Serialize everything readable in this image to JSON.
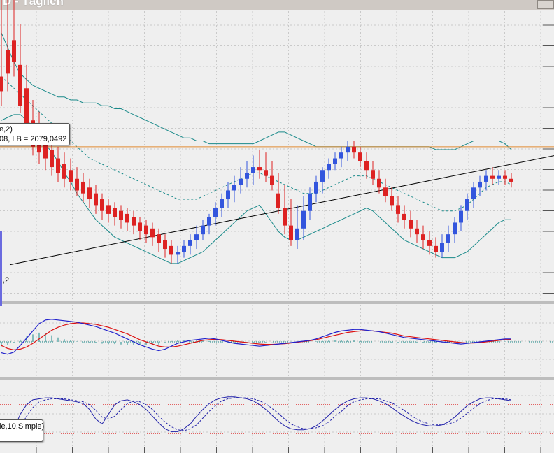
{
  "window": {
    "title": "D - Täglich"
  },
  "tooltips": {
    "main_line1": "e,2)",
    "main_line2": "08, LB = 2079,0492",
    "lower": "le,10,Simple)"
  },
  "point_label": ",2",
  "colors": {
    "bg": "#efefef",
    "grid": "#c9c9c9",
    "up": "#3355dd",
    "down": "#dd2222",
    "band": "#1a8a8a",
    "level": "#e08a30",
    "trend": "#000000",
    "macd": "#2222cc",
    "signal": "#dd1111",
    "hist": "#1a8a8a",
    "stoch_k": "#2222aa",
    "stoch_d": "#2222aa",
    "stoch_lvl": "#dd3333"
  },
  "chart_data": {
    "type": "candlestick",
    "note_series": [
      "ohlc",
      "bollinger_bands",
      "macd",
      "stochastic"
    ],
    "price_candles": [
      [
        0,
        220,
        210,
        335,
        200
      ],
      [
        1,
        238,
        222,
        328,
        210
      ],
      [
        2,
        245,
        230,
        350,
        220
      ],
      [
        3,
        228,
        200,
        256,
        195
      ],
      [
        4,
        212,
        186,
        228,
        178
      ],
      [
        5,
        190,
        172,
        204,
        166
      ],
      [
        6,
        186,
        168,
        196,
        160
      ],
      [
        7,
        176,
        164,
        186,
        156
      ],
      [
        8,
        170,
        158,
        180,
        152
      ],
      [
        9,
        164,
        154,
        172,
        148
      ],
      [
        10,
        160,
        150,
        168,
        144
      ],
      [
        11,
        156,
        148,
        164,
        142
      ],
      [
        12,
        150,
        142,
        158,
        138
      ],
      [
        13,
        148,
        140,
        154,
        134
      ],
      [
        14,
        144,
        136,
        150,
        130
      ],
      [
        15,
        140,
        132,
        146,
        126
      ],
      [
        16,
        136,
        128,
        140,
        122
      ],
      [
        17,
        132,
        126,
        136,
        120
      ],
      [
        18,
        130,
        124,
        134,
        118
      ],
      [
        19,
        128,
        122,
        132,
        116
      ],
      [
        20,
        126,
        120,
        130,
        114
      ],
      [
        21,
        124,
        118,
        128,
        112
      ],
      [
        22,
        120,
        114,
        124,
        108
      ],
      [
        23,
        118,
        112,
        122,
        106
      ],
      [
        24,
        116,
        110,
        120,
        104
      ],
      [
        25,
        112,
        106,
        116,
        100
      ],
      [
        26,
        108,
        102,
        112,
        96
      ],
      [
        27,
        104,
        98,
        108,
        92
      ],
      [
        28,
        98,
        100,
        104,
        92
      ],
      [
        29,
        100,
        104,
        108,
        96
      ],
      [
        30,
        104,
        108,
        112,
        98
      ],
      [
        31,
        108,
        112,
        118,
        102
      ],
      [
        32,
        112,
        118,
        122,
        108
      ],
      [
        33,
        118,
        124,
        126,
        112
      ],
      [
        34,
        124,
        130,
        134,
        118
      ],
      [
        35,
        130,
        136,
        140,
        124
      ],
      [
        36,
        136,
        142,
        148,
        130
      ],
      [
        37,
        142,
        146,
        152,
        134
      ],
      [
        38,
        146,
        150,
        158,
        140
      ],
      [
        39,
        150,
        154,
        162,
        144
      ],
      [
        40,
        154,
        158,
        166,
        146
      ],
      [
        41,
        158,
        156,
        170,
        150
      ],
      [
        42,
        156,
        152,
        168,
        148
      ],
      [
        43,
        152,
        146,
        162,
        142
      ],
      [
        44,
        140,
        130,
        154,
        126
      ],
      [
        45,
        130,
        118,
        146,
        112
      ],
      [
        46,
        118,
        108,
        136,
        104
      ],
      [
        47,
        108,
        116,
        132,
        102
      ],
      [
        48,
        116,
        128,
        138,
        108
      ],
      [
        49,
        128,
        140,
        144,
        122
      ],
      [
        50,
        140,
        148,
        152,
        134
      ],
      [
        51,
        148,
        156,
        158,
        140
      ],
      [
        52,
        156,
        160,
        164,
        150
      ],
      [
        53,
        160,
        164,
        168,
        156
      ],
      [
        54,
        164,
        168,
        172,
        158
      ],
      [
        55,
        168,
        172,
        176,
        162
      ],
      [
        56,
        172,
        168,
        176,
        164
      ],
      [
        57,
        168,
        162,
        172,
        158
      ],
      [
        58,
        162,
        156,
        168,
        150
      ],
      [
        59,
        156,
        150,
        162,
        146
      ],
      [
        60,
        150,
        144,
        156,
        140
      ],
      [
        61,
        144,
        138,
        150,
        134
      ],
      [
        62,
        138,
        132,
        144,
        128
      ],
      [
        63,
        132,
        126,
        138,
        120
      ],
      [
        64,
        126,
        122,
        132,
        116
      ],
      [
        65,
        122,
        116,
        128,
        110
      ],
      [
        66,
        116,
        112,
        122,
        106
      ],
      [
        67,
        112,
        108,
        118,
        102
      ],
      [
        68,
        108,
        104,
        114,
        98
      ],
      [
        69,
        104,
        100,
        110,
        96
      ],
      [
        70,
        100,
        106,
        112,
        96
      ],
      [
        71,
        106,
        112,
        118,
        100
      ],
      [
        72,
        112,
        120,
        124,
        106
      ],
      [
        73,
        120,
        128,
        132,
        114
      ],
      [
        74,
        128,
        136,
        140,
        122
      ],
      [
        75,
        136,
        144,
        148,
        130
      ],
      [
        76,
        144,
        148,
        152,
        138
      ],
      [
        77,
        148,
        152,
        156,
        142
      ],
      [
        78,
        152,
        150,
        158,
        146
      ],
      [
        79,
        150,
        152,
        156,
        146
      ],
      [
        80,
        152,
        150,
        156,
        146
      ],
      [
        81,
        150,
        148,
        154,
        144
      ]
    ],
    "bollinger_upper": [
      250,
      240,
      230,
      222,
      218,
      214,
      212,
      210,
      208,
      206,
      206,
      204,
      204,
      202,
      202,
      202,
      200,
      200,
      198,
      198,
      196,
      194,
      192,
      190,
      188,
      186,
      184,
      182,
      180,
      178,
      178,
      176,
      176,
      174,
      174,
      174,
      174,
      174,
      174,
      174,
      174,
      176,
      178,
      180,
      182,
      182,
      180,
      178,
      176,
      174,
      172,
      172,
      172,
      172,
      172,
      172,
      172,
      172,
      172,
      172,
      172,
      172,
      172,
      172,
      172,
      172,
      172,
      172,
      172,
      170,
      170,
      170,
      170,
      172,
      174,
      176,
      176,
      176,
      176,
      176,
      174,
      170
    ],
    "bollinger_mid": [
      220,
      216,
      212,
      208,
      204,
      200,
      196,
      192,
      188,
      184,
      180,
      176,
      172,
      168,
      164,
      162,
      160,
      158,
      156,
      154,
      152,
      150,
      148,
      146,
      144,
      142,
      140,
      138,
      136,
      136,
      136,
      136,
      138,
      140,
      142,
      144,
      146,
      148,
      150,
      152,
      154,
      154,
      152,
      150,
      148,
      146,
      144,
      142,
      140,
      140,
      140,
      142,
      144,
      146,
      148,
      150,
      152,
      152,
      152,
      150,
      148,
      146,
      144,
      142,
      140,
      138,
      136,
      134,
      132,
      130,
      128,
      128,
      128,
      130,
      132,
      136,
      140,
      144,
      146,
      148,
      148,
      146
    ],
    "bollinger_lower": [
      190,
      192,
      194,
      194,
      190,
      186,
      180,
      174,
      168,
      162,
      154,
      148,
      140,
      134,
      128,
      122,
      118,
      114,
      110,
      108,
      106,
      104,
      102,
      100,
      98,
      96,
      94,
      92,
      92,
      94,
      96,
      98,
      100,
      104,
      108,
      112,
      116,
      120,
      124,
      128,
      130,
      132,
      126,
      120,
      114,
      110,
      108,
      108,
      110,
      112,
      114,
      116,
      118,
      120,
      122,
      124,
      126,
      128,
      130,
      128,
      124,
      120,
      116,
      112,
      108,
      106,
      104,
      102,
      100,
      98,
      96,
      96,
      96,
      98,
      100,
      104,
      108,
      112,
      116,
      120,
      122,
      122
    ],
    "resistance_level": 172,
    "trendline": {
      "from": [
        0,
        90
      ],
      "to": [
        81,
        160
      ]
    },
    "macd_line": [
      -30,
      -34,
      -28,
      -10,
      10,
      30,
      50,
      60,
      62,
      60,
      58,
      56,
      54,
      50,
      46,
      42,
      36,
      30,
      24,
      16,
      8,
      0,
      -8,
      -14,
      -20,
      -24,
      -20,
      -12,
      -4,
      0,
      4,
      6,
      8,
      10,
      8,
      4,
      0,
      -4,
      -6,
      -8,
      -10,
      -12,
      -10,
      -8,
      -6,
      -4,
      -2,
      0,
      2,
      4,
      8,
      14,
      20,
      26,
      30,
      32,
      34,
      34,
      32,
      30,
      28,
      24,
      20,
      16,
      12,
      10,
      8,
      6,
      4,
      2,
      0,
      -2,
      -4,
      -6,
      -4,
      -2,
      0,
      2,
      4,
      6,
      8,
      8
    ],
    "signal_line": [
      -10,
      -18,
      -22,
      -20,
      -14,
      -4,
      8,
      20,
      32,
      40,
      46,
      50,
      52,
      52,
      50,
      48,
      44,
      40,
      34,
      28,
      22,
      14,
      6,
      0,
      -6,
      -12,
      -14,
      -14,
      -12,
      -8,
      -4,
      0,
      4,
      6,
      7,
      6,
      4,
      2,
      0,
      -2,
      -4,
      -6,
      -7,
      -7,
      -6,
      -5,
      -3,
      -1,
      1,
      3,
      6,
      10,
      14,
      18,
      22,
      26,
      28,
      30,
      30,
      30,
      28,
      26,
      24,
      20,
      16,
      14,
      12,
      10,
      8,
      6,
      4,
      2,
      0,
      -2,
      -3,
      -3,
      -2,
      0,
      2,
      4,
      6,
      7
    ],
    "stoch_k": [
      10,
      14,
      30,
      60,
      80,
      90,
      92,
      94,
      94,
      92,
      90,
      88,
      86,
      82,
      70,
      50,
      40,
      60,
      80,
      88,
      90,
      86,
      80,
      70,
      56,
      42,
      30,
      24,
      24,
      30,
      40,
      56,
      70,
      82,
      90,
      94,
      96,
      96,
      94,
      92,
      88,
      80,
      70,
      58,
      46,
      36,
      30,
      28,
      28,
      30,
      36,
      46,
      58,
      70,
      80,
      88,
      92,
      94,
      94,
      92,
      88,
      82,
      74,
      64,
      56,
      48,
      42,
      38,
      36,
      36,
      38,
      44,
      54,
      66,
      78,
      86,
      92,
      94,
      94,
      92,
      90,
      88
    ],
    "stoch_d": [
      12,
      12,
      18,
      34,
      56,
      74,
      86,
      90,
      92,
      92,
      92,
      90,
      88,
      86,
      80,
      68,
      54,
      50,
      56,
      70,
      82,
      88,
      86,
      80,
      70,
      56,
      44,
      34,
      28,
      26,
      30,
      38,
      52,
      66,
      78,
      88,
      92,
      94,
      94,
      94,
      92,
      88,
      82,
      72,
      62,
      50,
      40,
      34,
      30,
      30,
      32,
      36,
      44,
      56,
      66,
      78,
      86,
      90,
      92,
      92,
      92,
      88,
      84,
      76,
      68,
      58,
      50,
      44,
      40,
      38,
      38,
      40,
      44,
      52,
      62,
      72,
      82,
      88,
      92,
      92,
      92,
      90
    ],
    "stoch_levels": [
      80,
      20
    ]
  }
}
